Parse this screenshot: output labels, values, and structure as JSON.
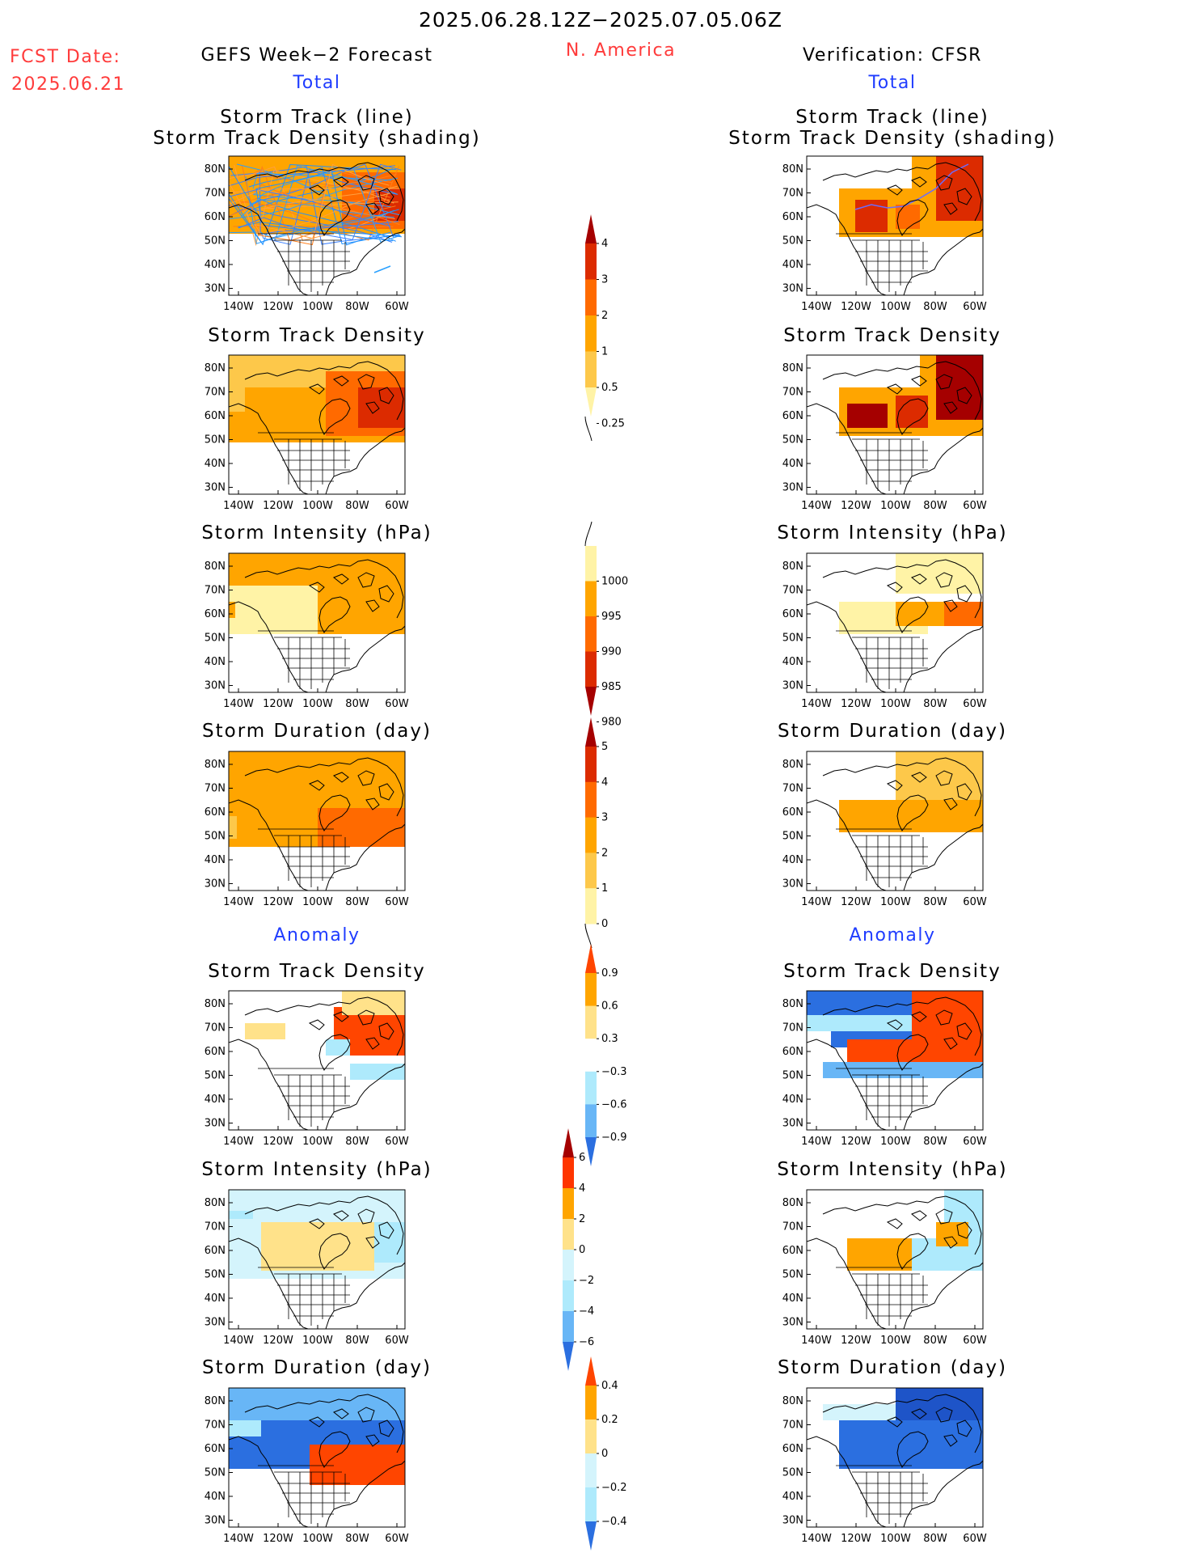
{
  "header": {
    "date_range": "2025.06.28.12Z−2025.07.05.06Z",
    "fcst_label": "FCST Date:",
    "fcst_date": "2025.06.21",
    "left_title": "GEFS Week−2 Forecast",
    "region": "N. America",
    "right_title": "Verification: CFSR"
  },
  "sections": {
    "total": "Total",
    "anomaly": "Anomaly"
  },
  "panel_titles": {
    "track_line": "Storm Track (line)",
    "track_shading": "Storm Track Density (shading)",
    "density": "Storm Track Density",
    "intensity": "Storm Intensity (hPa)",
    "duration": "Storm Duration (day)"
  },
  "axes": {
    "lat_ticks": [
      "80N",
      "70N",
      "60N",
      "50N",
      "40N",
      "30N"
    ],
    "lon_ticks": [
      "140W",
      "120W",
      "100W",
      "80W",
      "60W"
    ]
  },
  "colorbars": {
    "density": {
      "labels": [
        "4",
        "3",
        "2",
        "1",
        "0.5",
        "0.25"
      ],
      "colors": [
        "#a50000",
        "#dc2b00",
        "#ff6a00",
        "#ffa500",
        "#fdc84a",
        "#fff3a6"
      ]
    },
    "intensity": {
      "labels": [
        "1000",
        "995",
        "990",
        "985",
        "980"
      ],
      "colors": [
        "#fff3a6",
        "#ffa500",
        "#ff6a00",
        "#dc2b00",
        "#a50000"
      ]
    },
    "duration": {
      "labels": [
        "5",
        "4",
        "3",
        "2",
        "1",
        "0"
      ],
      "colors": [
        "#a50000",
        "#dc2b00",
        "#ff6a00",
        "#ffa500",
        "#fdc84a",
        "#fff3a6"
      ]
    },
    "anom_density": {
      "labels": [
        "0.9",
        "0.6",
        "0.3",
        "−0.3",
        "−0.6",
        "−0.9"
      ],
      "colors": [
        "#ff4500",
        "#ffa500",
        "#ffe28a",
        "#ffffff",
        "#aeeafc",
        "#68b6f6",
        "#2b6fe0"
      ]
    },
    "anom_intensity": {
      "labels": [
        "6",
        "4",
        "2",
        "0",
        "−2",
        "−4",
        "−6"
      ],
      "colors": [
        "#a50000",
        "#ff3500",
        "#ffa500",
        "#ffe28a",
        "#d4f4fc",
        "#aeeafc",
        "#68b6f6",
        "#2b6fe0"
      ]
    },
    "anom_duration": {
      "labels": [
        "0.4",
        "0.2",
        "0",
        "−0.2",
        "−0.4"
      ],
      "colors": [
        "#ff4500",
        "#ffa500",
        "#ffe28a",
        "#d4f4fc",
        "#aeeafc",
        "#2b6fe0"
      ]
    }
  }
}
